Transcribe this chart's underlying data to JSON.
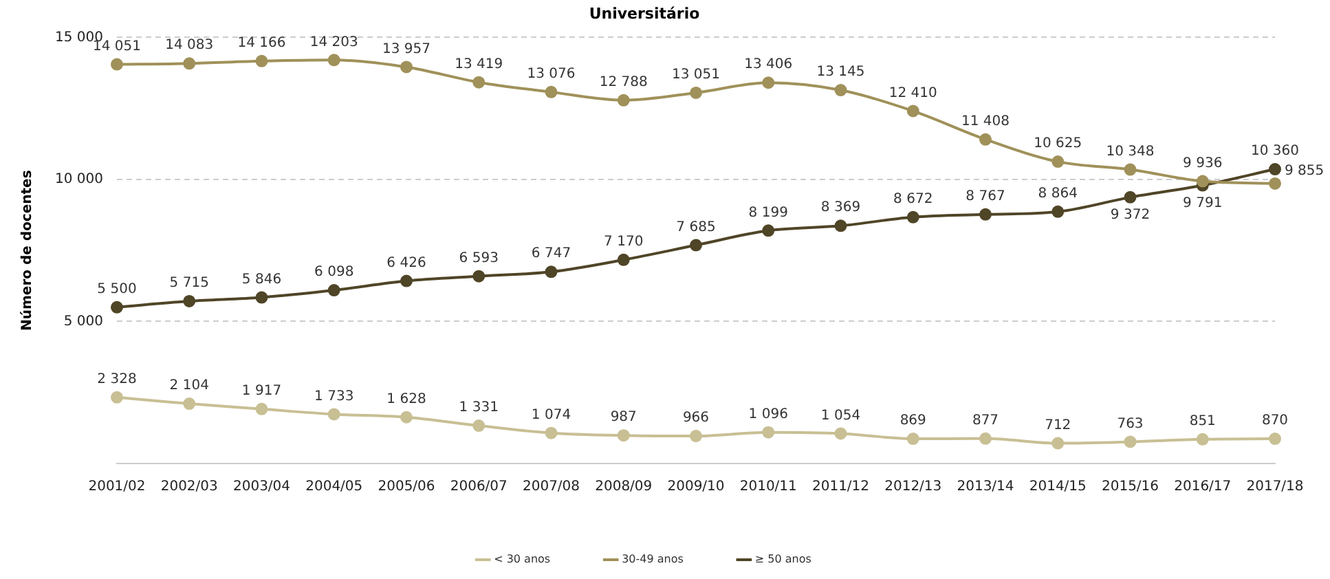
{
  "chart_data": {
    "type": "line",
    "title": "Universitário",
    "ylabel": "Número de docentes",
    "categories": [
      "2001/02",
      "2002/03",
      "2003/04",
      "2004/05",
      "2005/06",
      "2006/07",
      "2007/08",
      "2008/09",
      "2009/10",
      "2010/11",
      "2011/12",
      "2012/13",
      "2013/14",
      "2014/15",
      "2015/16",
      "2016/17",
      "2017/18"
    ],
    "series": [
      {
        "name": "< 30 anos",
        "color": "#c8bf94",
        "values": [
          2328,
          2104,
          1917,
          1733,
          1628,
          1331,
          1074,
          987,
          966,
          1096,
          1054,
          869,
          877,
          712,
          763,
          851,
          870
        ],
        "value_labels": [
          "2 328",
          "2 104",
          "1 917",
          "1 733",
          "1 628",
          "1 331",
          "1 074",
          "987",
          "966",
          "1 096",
          "1 054",
          "869",
          "877",
          "712",
          "763",
          "851",
          "870"
        ]
      },
      {
        "name": "30-49 anos",
        "color": "#a0915a",
        "values": [
          14051,
          14083,
          14166,
          14203,
          13957,
          13419,
          13076,
          12788,
          13051,
          13406,
          13145,
          12410,
          11408,
          10625,
          10348,
          9936,
          9855
        ],
        "value_labels": [
          "14 051",
          "14 083",
          "14 166",
          "14 203",
          "13 957",
          "13 419",
          "13 076",
          "12 788",
          "13 051",
          "13 406",
          "13 145",
          "12 410",
          "11 408",
          "10 625",
          "10 348",
          "9 936",
          "9 855"
        ]
      },
      {
        "name": "≥ 50 anos",
        "color": "#4f4527",
        "values": [
          5500,
          5715,
          5846,
          6098,
          6426,
          6593,
          6747,
          7170,
          7685,
          8199,
          8369,
          8672,
          8767,
          8864,
          9372,
          9791,
          10360
        ],
        "value_labels": [
          "5 500",
          "5 715",
          "5 846",
          "6 098",
          "6 426",
          "6 593",
          "6 747",
          "7 170",
          "7 685",
          "8 199",
          "8 369",
          "8 672",
          "8 767",
          "8 864",
          "9 372",
          "9 791",
          "10 360"
        ]
      }
    ],
    "ylim": [
      0,
      15000
    ],
    "yticks": [
      {
        "value": 5000,
        "label": "5 000"
      },
      {
        "value": 10000,
        "label": "10 000"
      },
      {
        "value": 15000,
        "label": "15 000"
      }
    ],
    "grid": "y",
    "legend": "bottom",
    "marker": "circle",
    "line_style": "solid"
  }
}
